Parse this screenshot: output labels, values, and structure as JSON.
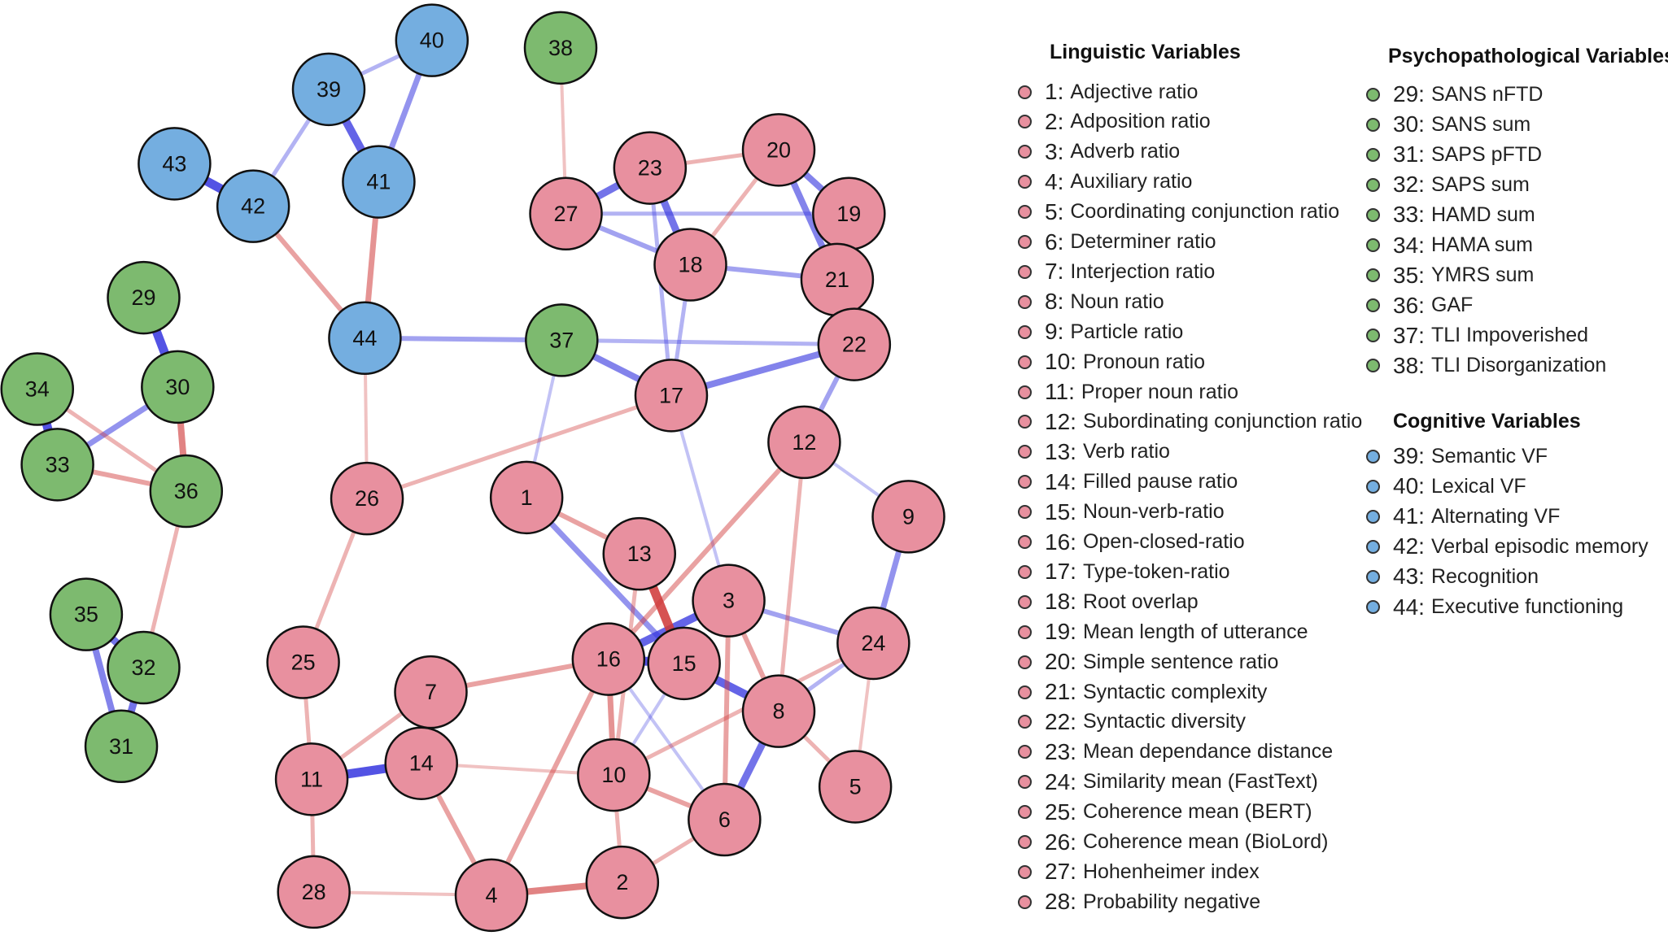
{
  "colors": {
    "linguistic": "#e8909f",
    "psychopathological": "#7dba6f",
    "cognitive": "#74aee0",
    "positive_edge": "#3a3ae0",
    "negative_edge": "#d03a3a"
  },
  "nodes": [
    {
      "id": 1,
      "group": "linguistic"
    },
    {
      "id": 2,
      "group": "linguistic"
    },
    {
      "id": 3,
      "group": "linguistic"
    },
    {
      "id": 4,
      "group": "linguistic"
    },
    {
      "id": 5,
      "group": "linguistic"
    },
    {
      "id": 6,
      "group": "linguistic"
    },
    {
      "id": 7,
      "group": "linguistic"
    },
    {
      "id": 8,
      "group": "linguistic"
    },
    {
      "id": 9,
      "group": "linguistic"
    },
    {
      "id": 10,
      "group": "linguistic"
    },
    {
      "id": 11,
      "group": "linguistic"
    },
    {
      "id": 12,
      "group": "linguistic"
    },
    {
      "id": 13,
      "group": "linguistic"
    },
    {
      "id": 14,
      "group": "linguistic"
    },
    {
      "id": 15,
      "group": "linguistic"
    },
    {
      "id": 16,
      "group": "linguistic"
    },
    {
      "id": 17,
      "group": "linguistic"
    },
    {
      "id": 18,
      "group": "linguistic"
    },
    {
      "id": 19,
      "group": "linguistic"
    },
    {
      "id": 20,
      "group": "linguistic"
    },
    {
      "id": 21,
      "group": "linguistic"
    },
    {
      "id": 22,
      "group": "linguistic"
    },
    {
      "id": 23,
      "group": "linguistic"
    },
    {
      "id": 24,
      "group": "linguistic"
    },
    {
      "id": 25,
      "group": "linguistic"
    },
    {
      "id": 26,
      "group": "linguistic"
    },
    {
      "id": 27,
      "group": "linguistic"
    },
    {
      "id": 28,
      "group": "linguistic"
    },
    {
      "id": 29,
      "group": "psychopathological"
    },
    {
      "id": 30,
      "group": "psychopathological"
    },
    {
      "id": 31,
      "group": "psychopathological"
    },
    {
      "id": 32,
      "group": "psychopathological"
    },
    {
      "id": 33,
      "group": "psychopathological"
    },
    {
      "id": 34,
      "group": "psychopathological"
    },
    {
      "id": 35,
      "group": "psychopathological"
    },
    {
      "id": 36,
      "group": "psychopathological"
    },
    {
      "id": 37,
      "group": "psychopathological"
    },
    {
      "id": 38,
      "group": "psychopathological"
    },
    {
      "id": 39,
      "group": "cognitive"
    },
    {
      "id": 40,
      "group": "cognitive"
    },
    {
      "id": 41,
      "group": "cognitive"
    },
    {
      "id": 42,
      "group": "cognitive"
    },
    {
      "id": 43,
      "group": "cognitive"
    },
    {
      "id": 44,
      "group": "cognitive"
    }
  ],
  "edges": [
    [
      29,
      30,
      0.9
    ],
    [
      33,
      34,
      0.9
    ],
    [
      42,
      43,
      0.9
    ],
    [
      39,
      41,
      0.8
    ],
    [
      40,
      41,
      0.5
    ],
    [
      39,
      40,
      0.3
    ],
    [
      39,
      42,
      0.3
    ],
    [
      31,
      32,
      0.7
    ],
    [
      31,
      35,
      0.6
    ],
    [
      32,
      35,
      0.7
    ],
    [
      11,
      14,
      0.9
    ],
    [
      15,
      16,
      0.9
    ],
    [
      3,
      16,
      0.8
    ],
    [
      15,
      8,
      0.8
    ],
    [
      8,
      6,
      0.7
    ],
    [
      27,
      23,
      0.7
    ],
    [
      23,
      18,
      0.7
    ],
    [
      20,
      21,
      0.6
    ],
    [
      19,
      20,
      0.6
    ],
    [
      21,
      22,
      0.4
    ],
    [
      30,
      33,
      0.5
    ],
    [
      37,
      17,
      0.6
    ],
    [
      17,
      22,
      0.6
    ],
    [
      37,
      44,
      0.4
    ],
    [
      37,
      22,
      0.3
    ],
    [
      18,
      21,
      0.4
    ],
    [
      27,
      18,
      0.4
    ],
    [
      1,
      15,
      0.5
    ],
    [
      22,
      12,
      0.4
    ],
    [
      9,
      24,
      0.5
    ],
    [
      3,
      24,
      0.4
    ],
    [
      24,
      8,
      0.3
    ],
    [
      27,
      19,
      0.3
    ],
    [
      23,
      17,
      0.3
    ],
    [
      18,
      17,
      0.3
    ],
    [
      17,
      3,
      0.2
    ],
    [
      37,
      1,
      0.2
    ],
    [
      10,
      15,
      0.2
    ],
    [
      6,
      16,
      0.2
    ],
    [
      9,
      12,
      0.2
    ],
    [
      13,
      15,
      -0.9
    ],
    [
      30,
      36,
      -0.6
    ],
    [
      41,
      44,
      -0.5
    ],
    [
      42,
      44,
      -0.4
    ],
    [
      33,
      36,
      -0.4
    ],
    [
      34,
      36,
      -0.3
    ],
    [
      36,
      32,
      -0.3
    ],
    [
      14,
      7,
      -0.4
    ],
    [
      7,
      16,
      -0.4
    ],
    [
      10,
      16,
      -0.5
    ],
    [
      10,
      13,
      -0.3
    ],
    [
      4,
      2,
      -0.6
    ],
    [
      4,
      14,
      -0.4
    ],
    [
      4,
      16,
      -0.4
    ],
    [
      11,
      25,
      -0.3
    ],
    [
      25,
      26,
      -0.3
    ],
    [
      28,
      11,
      -0.3
    ],
    [
      26,
      17,
      -0.3
    ],
    [
      1,
      13,
      -0.4
    ],
    [
      16,
      12,
      -0.4
    ],
    [
      8,
      12,
      -0.3
    ],
    [
      23,
      20,
      -0.3
    ],
    [
      18,
      20,
      -0.3
    ],
    [
      5,
      8,
      -0.3
    ],
    [
      6,
      2,
      -0.3
    ],
    [
      6,
      10,
      -0.4
    ],
    [
      3,
      8,
      -0.4
    ],
    [
      3,
      6,
      -0.4
    ],
    [
      10,
      24,
      -0.3
    ],
    [
      27,
      38,
      -0.2
    ],
    [
      7,
      11,
      -0.3
    ],
    [
      14,
      10,
      -0.2
    ],
    [
      2,
      10,
      -0.3
    ],
    [
      28,
      4,
      -0.2
    ],
    [
      26,
      44,
      -0.2
    ],
    [
      5,
      24,
      -0.2
    ]
  ],
  "legend": {
    "linguistic": {
      "title": "Linguistic Variables",
      "items": [
        {
          "num": "1:",
          "label": "Adjective ratio"
        },
        {
          "num": "2:",
          "label": "Adposition ratio"
        },
        {
          "num": "3:",
          "label": "Adverb ratio"
        },
        {
          "num": "4:",
          "label": "Auxiliary ratio"
        },
        {
          "num": "5:",
          "label": "Coordinating conjunction ratio"
        },
        {
          "num": "6:",
          "label": "Determiner ratio"
        },
        {
          "num": "7:",
          "label": "Interjection ratio"
        },
        {
          "num": "8:",
          "label": "Noun ratio"
        },
        {
          "num": "9:",
          "label": "Particle ratio"
        },
        {
          "num": "10:",
          "label": "Pronoun ratio"
        },
        {
          "num": "11:",
          "label": "Proper noun ratio"
        },
        {
          "num": "12:",
          "label": "Subordinating conjunction ratio"
        },
        {
          "num": "13:",
          "label": "Verb ratio"
        },
        {
          "num": "14:",
          "label": "Filled pause ratio"
        },
        {
          "num": "15:",
          "label": "Noun-verb-ratio"
        },
        {
          "num": "16:",
          "label": "Open-closed-ratio"
        },
        {
          "num": "17:",
          "label": "Type-token-ratio"
        },
        {
          "num": "18:",
          "label": "Root overlap"
        },
        {
          "num": "19:",
          "label": "Mean length of utterance"
        },
        {
          "num": "20:",
          "label": "Simple sentence ratio"
        },
        {
          "num": "21:",
          "label": "Syntactic complexity"
        },
        {
          "num": "22:",
          "label": "Syntactic diversity"
        },
        {
          "num": "23:",
          "label": "Mean dependance distance"
        },
        {
          "num": "24:",
          "label": "Similarity mean (FastText)"
        },
        {
          "num": "25:",
          "label": "Coherence mean (BERT)"
        },
        {
          "num": "26:",
          "label": "Coherence mean (BioLord)"
        },
        {
          "num": "27:",
          "label": "Hohenheimer index"
        },
        {
          "num": "28:",
          "label": "Probability negative"
        }
      ]
    },
    "psychopathological": {
      "title": "Psychopathological Variables",
      "items": [
        {
          "num": "29:",
          "label": "SANS nFTD"
        },
        {
          "num": "30:",
          "label": "SANS sum"
        },
        {
          "num": "31:",
          "label": "SAPS pFTD"
        },
        {
          "num": "32:",
          "label": "SAPS sum"
        },
        {
          "num": "33:",
          "label": "HAMD sum"
        },
        {
          "num": "34:",
          "label": "HAMA sum"
        },
        {
          "num": "35:",
          "label": "YMRS sum"
        },
        {
          "num": "36:",
          "label": "GAF"
        },
        {
          "num": "37:",
          "label": "TLI Impoverished"
        },
        {
          "num": "38:",
          "label": "TLI Disorganization"
        }
      ]
    },
    "cognitive": {
      "title": "Cognitive Variables",
      "items": [
        {
          "num": "39:",
          "label": "Semantic VF"
        },
        {
          "num": "40:",
          "label": "Lexical VF"
        },
        {
          "num": "41:",
          "label": "Alternating VF"
        },
        {
          "num": "42:",
          "label": "Verbal episodic memory"
        },
        {
          "num": "43:",
          "label": "Recognition"
        },
        {
          "num": "44:",
          "label": "Executive functioning"
        }
      ]
    }
  }
}
